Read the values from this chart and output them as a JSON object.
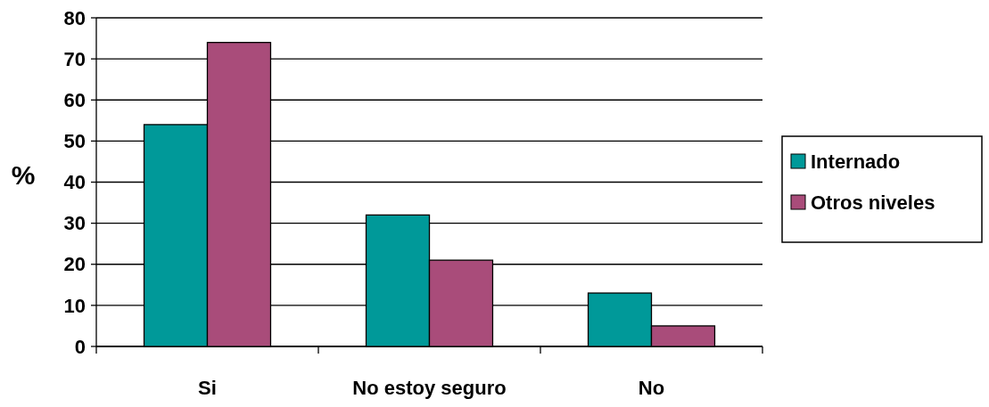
{
  "chart_data": {
    "type": "bar",
    "ylabel": "%",
    "categories": [
      "Si",
      "No estoy seguro",
      "No"
    ],
    "series": [
      {
        "name": "Internado",
        "color": "#009999",
        "values": [
          54,
          32,
          13
        ]
      },
      {
        "name": "Otros niveles",
        "color": "#a94c7a",
        "values": [
          74,
          21,
          5
        ]
      }
    ],
    "ylim": [
      0,
      80
    ],
    "yticks": [
      0,
      10,
      20,
      30,
      40,
      50,
      60,
      70,
      80
    ],
    "grid": "y",
    "legend": "right"
  }
}
